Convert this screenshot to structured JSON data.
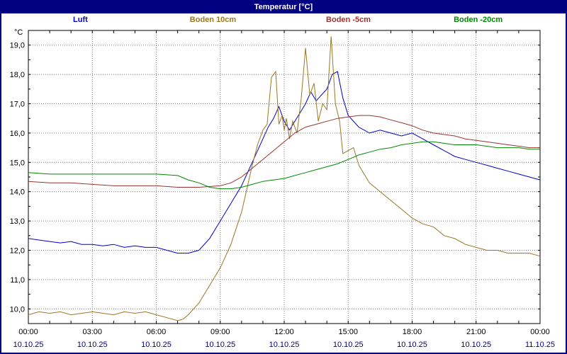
{
  "window": {
    "title": "Temperatur [°C]"
  },
  "colors": {
    "titlebar_bg": "#000080",
    "titlebar_text": "#ffffff",
    "frame": "#000000",
    "grid": "#777777",
    "axis_text": "#000000",
    "date_text": "#000080"
  },
  "chart_data": {
    "type": "line",
    "title": "Temperatur [°C]",
    "xlabel": "",
    "ylabel": "°C",
    "ylim": [
      9.5,
      19.5
    ],
    "yticks": [
      10,
      11,
      12,
      13,
      14,
      15,
      16,
      17,
      18,
      19
    ],
    "xlim_hours": [
      0,
      24
    ],
    "grid": true,
    "legend_position": "top",
    "xticks": [
      {
        "hour": 0,
        "time": "00:00",
        "date": "10.10.25"
      },
      {
        "hour": 3,
        "time": "03:00",
        "date": "10.10.25"
      },
      {
        "hour": 6,
        "time": "06:00",
        "date": "10.10.25"
      },
      {
        "hour": 9,
        "time": "09:00",
        "date": "10.10.25"
      },
      {
        "hour": 12,
        "time": "12:00",
        "date": "10.10.25"
      },
      {
        "hour": 15,
        "time": "15:00",
        "date": "10.10.25"
      },
      {
        "hour": 18,
        "time": "18:00",
        "date": "10.10.25"
      },
      {
        "hour": 21,
        "time": "21:00",
        "date": "10.10.25"
      },
      {
        "hour": 24,
        "time": "00:00",
        "date": "11.10.25"
      }
    ],
    "series": [
      {
        "name": "Luft",
        "color": "#0000cc",
        "points": [
          [
            0,
            12.4
          ],
          [
            0.5,
            12.35
          ],
          [
            1,
            12.3
          ],
          [
            1.5,
            12.25
          ],
          [
            2,
            12.3
          ],
          [
            2.5,
            12.2
          ],
          [
            3,
            12.2
          ],
          [
            3.5,
            12.15
          ],
          [
            4,
            12.2
          ],
          [
            4.5,
            12.1
          ],
          [
            5,
            12.15
          ],
          [
            5.5,
            12.1
          ],
          [
            6,
            12.1
          ],
          [
            6.5,
            12.0
          ],
          [
            7,
            11.9
          ],
          [
            7.5,
            11.9
          ],
          [
            8,
            12.0
          ],
          [
            8.5,
            12.4
          ],
          [
            9,
            13.0
          ],
          [
            9.5,
            13.6
          ],
          [
            10,
            14.2
          ],
          [
            10.5,
            15.0
          ],
          [
            11,
            15.8
          ],
          [
            11.25,
            16.2
          ],
          [
            11.5,
            16.5
          ],
          [
            11.75,
            16.9
          ],
          [
            12,
            16.4
          ],
          [
            12.25,
            16.1
          ],
          [
            12.5,
            16.4
          ],
          [
            12.75,
            16.7
          ],
          [
            13,
            17.0
          ],
          [
            13.25,
            17.4
          ],
          [
            13.5,
            17.1
          ],
          [
            13.75,
            17.3
          ],
          [
            14,
            17.5
          ],
          [
            14.25,
            18.0
          ],
          [
            14.5,
            18.1
          ],
          [
            14.75,
            17.2
          ],
          [
            15,
            16.6
          ],
          [
            15.5,
            16.2
          ],
          [
            16,
            16.0
          ],
          [
            16.5,
            16.1
          ],
          [
            17,
            16.0
          ],
          [
            17.5,
            15.9
          ],
          [
            18,
            16.0
          ],
          [
            18.5,
            15.8
          ],
          [
            19,
            15.6
          ],
          [
            19.5,
            15.4
          ],
          [
            20,
            15.2
          ],
          [
            20.5,
            15.1
          ],
          [
            21,
            15.0
          ],
          [
            21.5,
            14.9
          ],
          [
            22,
            14.8
          ],
          [
            22.5,
            14.7
          ],
          [
            23,
            14.6
          ],
          [
            23.5,
            14.5
          ],
          [
            24,
            14.4
          ]
        ]
      },
      {
        "name": "Boden 10cm",
        "color": "#997722",
        "points": [
          [
            0,
            9.8
          ],
          [
            0.5,
            9.9
          ],
          [
            1,
            9.85
          ],
          [
            1.5,
            9.9
          ],
          [
            2,
            9.8
          ],
          [
            2.5,
            9.85
          ],
          [
            3,
            9.9
          ],
          [
            3.5,
            9.85
          ],
          [
            4,
            9.8
          ],
          [
            4.5,
            9.9
          ],
          [
            5,
            9.85
          ],
          [
            5.5,
            9.9
          ],
          [
            6,
            9.8
          ],
          [
            6.5,
            9.7
          ],
          [
            7,
            9.6
          ],
          [
            7.25,
            9.65
          ],
          [
            7.5,
            9.8
          ],
          [
            8,
            10.2
          ],
          [
            8.5,
            10.8
          ],
          [
            9,
            11.4
          ],
          [
            9.5,
            12.2
          ],
          [
            10,
            13.3
          ],
          [
            10.25,
            14.1
          ],
          [
            10.5,
            14.9
          ],
          [
            10.75,
            15.6
          ],
          [
            11,
            16.1
          ],
          [
            11.2,
            16.3
          ],
          [
            11.4,
            17.9
          ],
          [
            11.6,
            18.1
          ],
          [
            11.75,
            16.3
          ],
          [
            11.9,
            16.6
          ],
          [
            12,
            16.1
          ],
          [
            12.1,
            16.5
          ],
          [
            12.25,
            15.8
          ],
          [
            12.4,
            16.4
          ],
          [
            12.6,
            16.0
          ],
          [
            12.8,
            17.2
          ],
          [
            13,
            18.9
          ],
          [
            13.2,
            17.3
          ],
          [
            13.4,
            17.7
          ],
          [
            13.6,
            16.4
          ],
          [
            13.8,
            17.0
          ],
          [
            14,
            16.8
          ],
          [
            14.2,
            19.3
          ],
          [
            14.4,
            17.0
          ],
          [
            14.6,
            16.4
          ],
          [
            14.75,
            15.3
          ],
          [
            15,
            15.4
          ],
          [
            15.25,
            15.5
          ],
          [
            15.5,
            14.9
          ],
          [
            16,
            14.3
          ],
          [
            16.5,
            14.0
          ],
          [
            17,
            13.7
          ],
          [
            17.5,
            13.4
          ],
          [
            18,
            13.1
          ],
          [
            18.5,
            12.9
          ],
          [
            19,
            12.8
          ],
          [
            19.5,
            12.5
          ],
          [
            20,
            12.4
          ],
          [
            20.5,
            12.2
          ],
          [
            21,
            12.1
          ],
          [
            21.5,
            12.0
          ],
          [
            22,
            12.0
          ],
          [
            22.5,
            11.9
          ],
          [
            23,
            11.9
          ],
          [
            23.5,
            11.9
          ],
          [
            24,
            11.8
          ]
        ]
      },
      {
        "name": "Boden -5cm",
        "color": "#993333",
        "points": [
          [
            0,
            14.35
          ],
          [
            1,
            14.3
          ],
          [
            2,
            14.3
          ],
          [
            3,
            14.25
          ],
          [
            4,
            14.2
          ],
          [
            5,
            14.2
          ],
          [
            6,
            14.2
          ],
          [
            7,
            14.15
          ],
          [
            8,
            14.15
          ],
          [
            9,
            14.2
          ],
          [
            9.5,
            14.3
          ],
          [
            10,
            14.5
          ],
          [
            10.5,
            14.8
          ],
          [
            11,
            15.1
          ],
          [
            11.5,
            15.4
          ],
          [
            12,
            15.7
          ],
          [
            12.5,
            16.0
          ],
          [
            13,
            16.2
          ],
          [
            13.5,
            16.3
          ],
          [
            14,
            16.4
          ],
          [
            14.5,
            16.5
          ],
          [
            15,
            16.55
          ],
          [
            15.5,
            16.6
          ],
          [
            16,
            16.6
          ],
          [
            16.5,
            16.55
          ],
          [
            17,
            16.45
          ],
          [
            17.5,
            16.35
          ],
          [
            18,
            16.25
          ],
          [
            18.5,
            16.1
          ],
          [
            19,
            16.0
          ],
          [
            19.5,
            15.95
          ],
          [
            20,
            15.9
          ],
          [
            20.5,
            15.8
          ],
          [
            21,
            15.75
          ],
          [
            21.5,
            15.7
          ],
          [
            22,
            15.65
          ],
          [
            22.5,
            15.6
          ],
          [
            23,
            15.55
          ],
          [
            23.5,
            15.5
          ],
          [
            24,
            15.5
          ]
        ]
      },
      {
        "name": "Boden -20cm",
        "color": "#008800",
        "points": [
          [
            0,
            14.65
          ],
          [
            1,
            14.6
          ],
          [
            2,
            14.6
          ],
          [
            3,
            14.6
          ],
          [
            4,
            14.6
          ],
          [
            5,
            14.6
          ],
          [
            6,
            14.6
          ],
          [
            7,
            14.55
          ],
          [
            7.5,
            14.4
          ],
          [
            8,
            14.3
          ],
          [
            8.5,
            14.15
          ],
          [
            9,
            14.1
          ],
          [
            9.5,
            14.1
          ],
          [
            10,
            14.15
          ],
          [
            10.5,
            14.25
          ],
          [
            11,
            14.35
          ],
          [
            11.5,
            14.4
          ],
          [
            12,
            14.45
          ],
          [
            12.5,
            14.55
          ],
          [
            13,
            14.65
          ],
          [
            13.5,
            14.75
          ],
          [
            14,
            14.85
          ],
          [
            14.5,
            14.95
          ],
          [
            15,
            15.1
          ],
          [
            15.5,
            15.25
          ],
          [
            16,
            15.35
          ],
          [
            16.5,
            15.45
          ],
          [
            17,
            15.5
          ],
          [
            17.5,
            15.6
          ],
          [
            18,
            15.65
          ],
          [
            18.5,
            15.7
          ],
          [
            19,
            15.7
          ],
          [
            19.5,
            15.65
          ],
          [
            20,
            15.6
          ],
          [
            20.5,
            15.6
          ],
          [
            21,
            15.6
          ],
          [
            21.5,
            15.55
          ],
          [
            22,
            15.5
          ],
          [
            22.5,
            15.5
          ],
          [
            23,
            15.5
          ],
          [
            23.5,
            15.45
          ],
          [
            24,
            15.45
          ]
        ]
      }
    ]
  }
}
